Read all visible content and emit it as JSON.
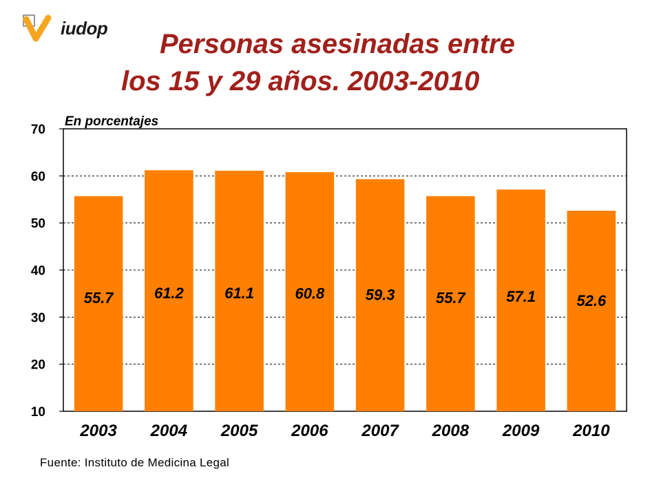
{
  "logo": {
    "text": "iudop",
    "icon": "checkmark-v-icon",
    "color": "#f5a623"
  },
  "title": {
    "line1": "Personas asesinadas entre",
    "line2": "los 15 y 29 años. 2003-2010"
  },
  "chart_data": {
    "type": "bar",
    "title": "Personas asesinadas entre los 15 y 29 años. 2003-2010",
    "ylabel": "En porcentajes",
    "xlabel": "",
    "categories": [
      "2003",
      "2004",
      "2005",
      "2006",
      "2007",
      "2008",
      "2009",
      "2010"
    ],
    "values": [
      55.7,
      61.2,
      61.1,
      60.8,
      59.3,
      55.7,
      57.1,
      52.6
    ],
    "data_labels": [
      "55.7",
      "61.2",
      "61.1",
      "60.8",
      "59.3",
      "55.7",
      "57.1",
      "52.6"
    ],
    "ylim": [
      10,
      70
    ],
    "yticks": [
      10,
      20,
      30,
      40,
      50,
      60,
      70
    ],
    "grid": true,
    "bar_color": "#ff7f00"
  },
  "source": "Fuente: Instituto de Medicina Legal"
}
